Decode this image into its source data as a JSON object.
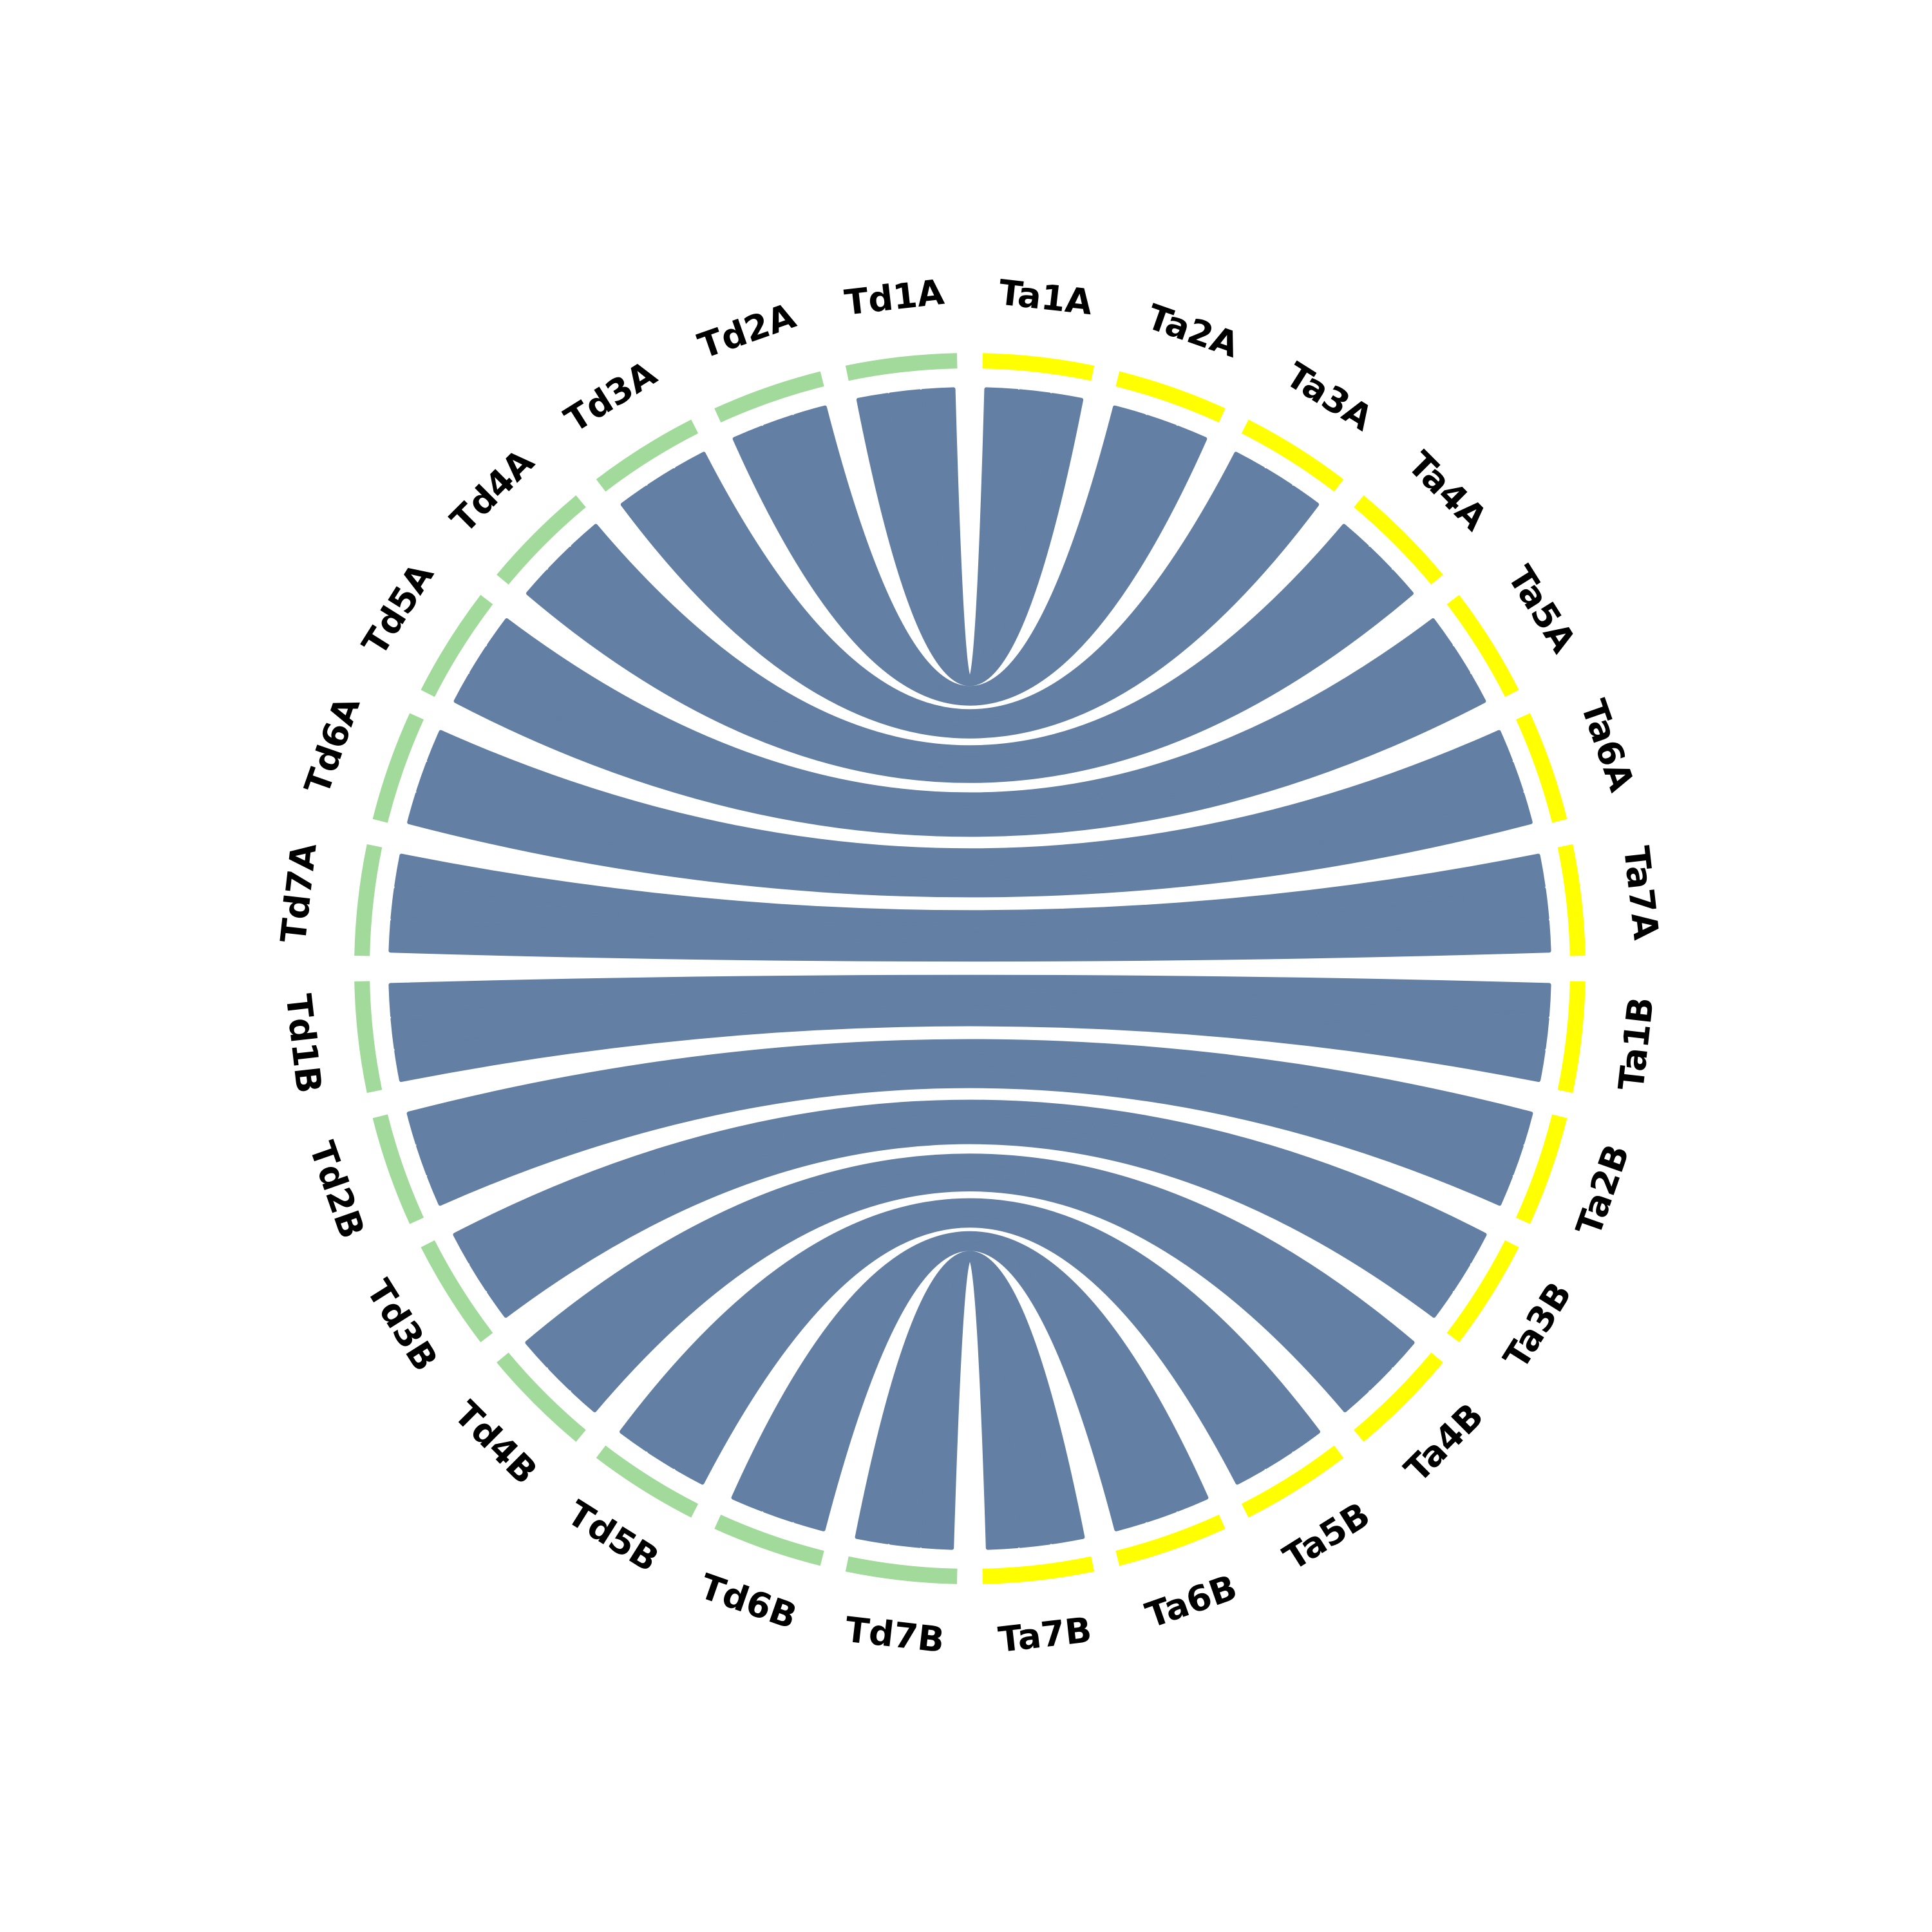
{
  "segments": [
    {
      "label": "Ta1A",
      "color": "#ffff00"
    },
    {
      "label": "Ta2A",
      "color": "#ffff00"
    },
    {
      "label": "Ta3A",
      "color": "#ffff00"
    },
    {
      "label": "Ta4A",
      "color": "#ffff00"
    },
    {
      "label": "Ta5A",
      "color": "#ffff00"
    },
    {
      "label": "Ta6A",
      "color": "#ffff00"
    },
    {
      "label": "Ta7A",
      "color": "#ffff00"
    },
    {
      "label": "Ta1B",
      "color": "#ffff00"
    },
    {
      "label": "Ta2B",
      "color": "#ffff00"
    },
    {
      "label": "Ta3B",
      "color": "#ffff00"
    },
    {
      "label": "Ta4B",
      "color": "#ffff00"
    },
    {
      "label": "Ta5B",
      "color": "#ffff00"
    },
    {
      "label": "Ta6B",
      "color": "#ffff00"
    },
    {
      "label": "Ta7B",
      "color": "#ffff00"
    },
    {
      "label": "Td7B",
      "color": "#a1da9b"
    },
    {
      "label": "Td6B",
      "color": "#a1da9b"
    },
    {
      "label": "Td5B",
      "color": "#a1da9b"
    },
    {
      "label": "Td4B",
      "color": "#a1da9b"
    },
    {
      "label": "Td3B",
      "color": "#a1da9b"
    },
    {
      "label": "Td2B",
      "color": "#a1da9b"
    },
    {
      "label": "Td1B",
      "color": "#a1da9b"
    },
    {
      "label": "Td7A",
      "color": "#a1da9b"
    },
    {
      "label": "Td6A",
      "color": "#a1da9b"
    },
    {
      "label": "Td5A",
      "color": "#a1da9b"
    },
    {
      "label": "Td4A",
      "color": "#a1da9b"
    },
    {
      "label": "Td3A",
      "color": "#a1da9b"
    },
    {
      "label": "Td2A",
      "color": "#a1da9b"
    },
    {
      "label": "Td1A",
      "color": "#a1da9b"
    }
  ],
  "link_color": "#637fa3"
}
